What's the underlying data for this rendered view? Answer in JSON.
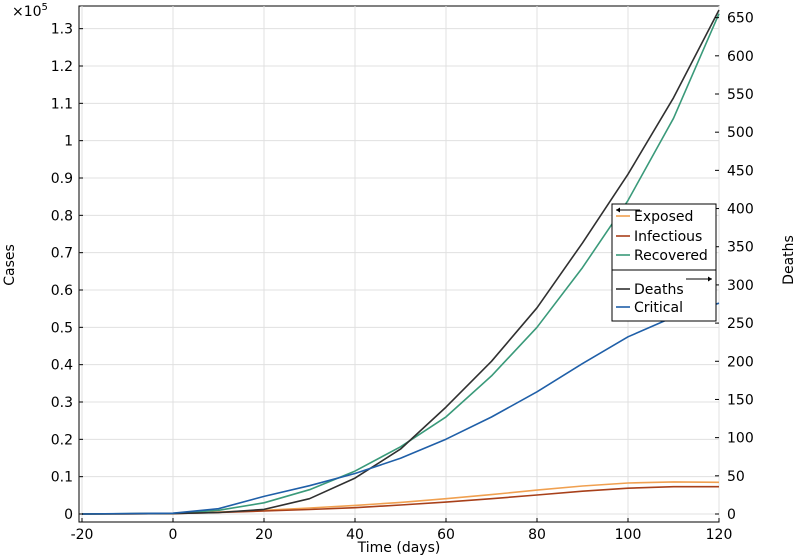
{
  "chart_data": {
    "type": "line",
    "xlabel": "Time (days)",
    "ylabel_left": "Cases",
    "ylabel_right": "Deaths",
    "multiplier_label": "×10",
    "multiplier_exp": "5",
    "xlim": [
      -20,
      120
    ],
    "ylim_left": [
      0,
      1.35
    ],
    "ylim_right": [
      0,
      660
    ],
    "x_ticks": [
      -20,
      0,
      20,
      40,
      60,
      80,
      100,
      120
    ],
    "x_tick_labels": [
      "-20",
      "0",
      "20",
      "40",
      "60",
      "80",
      "100",
      "120"
    ],
    "y_left_ticks": [
      0,
      0.1,
      0.2,
      0.3,
      0.4,
      0.5,
      0.6,
      0.7,
      0.8,
      0.9,
      1,
      1.1,
      1.2,
      1.3
    ],
    "y_left_tick_labels": [
      "0",
      "0.1",
      "0.2",
      "0.3",
      "0.4",
      "0.5",
      "0.6",
      "0.7",
      "0.8",
      "0.9",
      "1",
      "1.1",
      "1.2",
      "1.3"
    ],
    "y_right_ticks": [
      0,
      50,
      100,
      150,
      200,
      250,
      300,
      350,
      400,
      450,
      500,
      550,
      600,
      650
    ],
    "y_right_tick_labels": [
      "0",
      "50",
      "100",
      "150",
      "200",
      "250",
      "300",
      "350",
      "400",
      "450",
      "500",
      "550",
      "600",
      "650"
    ],
    "grid": true,
    "legend_placement": "right",
    "series": [
      {
        "name": "Exposed",
        "axis": "left",
        "color": "#f0a050",
        "x": [
          -20,
          0,
          10,
          20,
          30,
          40,
          50,
          60,
          70,
          80,
          90,
          100,
          110,
          120
        ],
        "y": [
          0,
          0.001,
          0.005,
          0.01,
          0.016,
          0.023,
          0.031,
          0.041,
          0.052,
          0.064,
          0.075,
          0.083,
          0.086,
          0.085
        ]
      },
      {
        "name": "Infectious",
        "axis": "left",
        "color": "#a8401a",
        "x": [
          -20,
          0,
          10,
          20,
          30,
          40,
          50,
          60,
          70,
          80,
          90,
          100,
          110,
          120
        ],
        "y": [
          0,
          0.001,
          0.004,
          0.008,
          0.012,
          0.017,
          0.024,
          0.032,
          0.041,
          0.051,
          0.061,
          0.069,
          0.073,
          0.073
        ]
      },
      {
        "name": "Recovered",
        "axis": "left",
        "color": "#3a9a7a",
        "x": [
          -20,
          0,
          10,
          20,
          30,
          40,
          50,
          60,
          70,
          80,
          90,
          100,
          110,
          120
        ],
        "y": [
          0,
          0.002,
          0.01,
          0.03,
          0.065,
          0.115,
          0.18,
          0.26,
          0.37,
          0.5,
          0.66,
          0.84,
          1.06,
          1.34
        ]
      },
      {
        "name": "Deaths",
        "axis": "right",
        "color": "#303030",
        "x": [
          -20,
          0,
          10,
          20,
          30,
          40,
          50,
          60,
          70,
          80,
          90,
          100,
          110,
          120
        ],
        "y": [
          0,
          0.5,
          2,
          6,
          20,
          47,
          85,
          140,
          200,
          270,
          355,
          445,
          545,
          660
        ]
      },
      {
        "name": "Critical",
        "axis": "right",
        "color": "#1f5fa8",
        "x": [
          -20,
          0,
          10,
          20,
          30,
          40,
          50,
          60,
          70,
          80,
          90,
          100,
          110,
          120
        ],
        "y": [
          0,
          1,
          7,
          23,
          37,
          53,
          73,
          98,
          127,
          160,
          197,
          232,
          258,
          276
        ]
      }
    ]
  }
}
